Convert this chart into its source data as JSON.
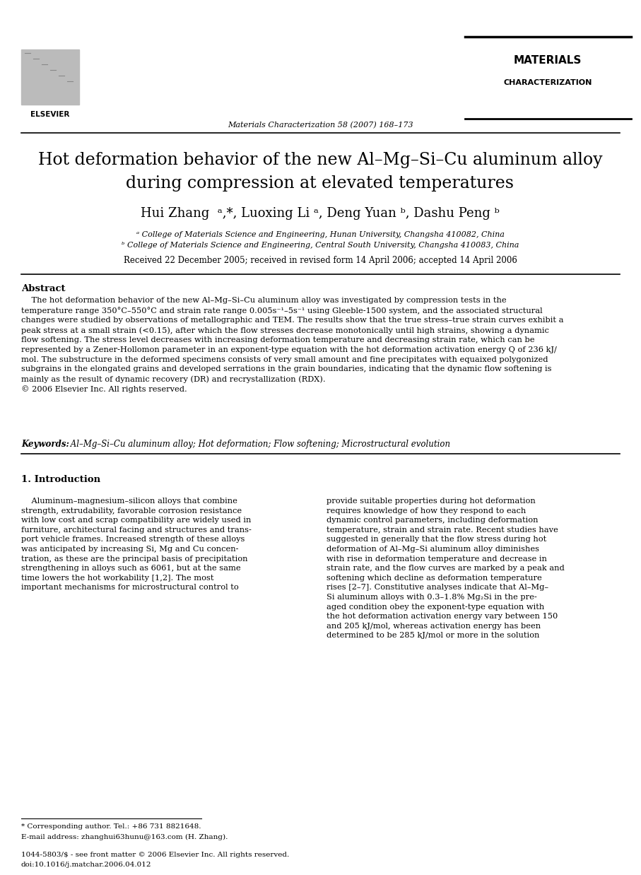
{
  "bg_color": "#ffffff",
  "title_line1": "Hot deformation behavior of the new Al–Mg–Si–Cu aluminum alloy",
  "title_line2": "during compression at elevated temperatures",
  "authors": "Hui Zhang  ᵃ,*, Luoxing Li ᵃ, Deng Yuan ᵇ, Dashu Peng ᵇ",
  "affil_a": "ᵃ College of Materials Science and Engineering, Hunan University, Changsha 410082, China",
  "affil_b": "ᵇ College of Materials Science and Engineering, Central South University, Changsha 410083, China",
  "received": "Received 22 December 2005; received in revised form 14 April 2006; accepted 14 April 2006",
  "abstract_label": "Abstract",
  "keywords_label": "Keywords:",
  "keywords_text": " Al–Mg–Si–Cu aluminum alloy; Hot deformation; Flow softening; Microstructural evolution",
  "section1_title": "1. Introduction",
  "journal_info": "Materials Characterization 58 (2007) 168–173",
  "journal_name_top": "MATERIALS",
  "journal_subname_top": "CHARACTERIZATION",
  "footnote1": "* Corresponding author. Tel.: +86 731 8821648.",
  "footnote2": "E-mail address: zhanghui63hunu@163.com (H. Zhang).",
  "footer1": "1044-5803/$ - see front matter © 2006 Elsevier Inc. All rights reserved.",
  "footer2": "doi:10.1016/j.matchar.2006.04.012"
}
